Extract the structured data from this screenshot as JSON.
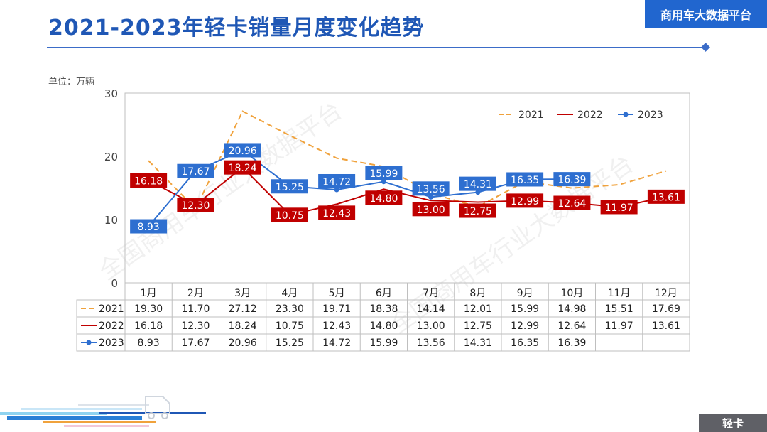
{
  "header": {
    "title": "2021-2023年轻卡销量月度变化趋势",
    "brand": "商用车大数据平台",
    "unit": "单位：万辆",
    "footer_tag": "轻卡",
    "watermark": "全国商用车行业大数据平台"
  },
  "colors": {
    "brand_blue": "#2166cf",
    "series_2021": "#f0a23c",
    "series_2022": "#c00000",
    "series_2023": "#2e6fd0"
  },
  "chart_data": {
    "type": "line",
    "title": "",
    "xlabel": "",
    "ylabel": "",
    "ylim": [
      0,
      30
    ],
    "yticks": [
      "0",
      "10",
      "20",
      "30"
    ],
    "grid": false,
    "legend": "top-right",
    "categories": [
      "1月",
      "2月",
      "3月",
      "4月",
      "5月",
      "6月",
      "7月",
      "8月",
      "9月",
      "10月",
      "11月",
      "12月"
    ],
    "series": [
      {
        "name": "2021",
        "style": "dashed",
        "data_labels": false,
        "values": [
          19.3,
          11.7,
          27.12,
          23.3,
          19.71,
          18.38,
          14.14,
          12.01,
          15.99,
          14.98,
          15.51,
          17.69
        ],
        "table": [
          "19.30",
          "11.70",
          "27.12",
          "23.30",
          "19.71",
          "18.38",
          "14.14",
          "12.01",
          "15.99",
          "14.98",
          "15.51",
          "17.69"
        ]
      },
      {
        "name": "2022",
        "style": "solid",
        "data_labels": true,
        "values": [
          16.18,
          12.3,
          18.24,
          10.75,
          12.43,
          14.8,
          13.0,
          12.75,
          12.99,
          12.64,
          11.97,
          13.61
        ],
        "table": [
          "16.18",
          "12.30",
          "18.24",
          "10.75",
          "12.43",
          "14.80",
          "13.00",
          "12.75",
          "12.99",
          "12.64",
          "11.97",
          "13.61"
        ]
      },
      {
        "name": "2023",
        "style": "solid-marker",
        "data_labels": true,
        "values": [
          8.93,
          17.67,
          20.96,
          15.25,
          14.72,
          15.99,
          13.56,
          14.31,
          16.35,
          16.39,
          null,
          null
        ],
        "table": [
          "8.93",
          "17.67",
          "20.96",
          "15.25",
          "14.72",
          "15.99",
          "13.56",
          "14.31",
          "16.35",
          "16.39",
          "",
          ""
        ]
      }
    ]
  }
}
